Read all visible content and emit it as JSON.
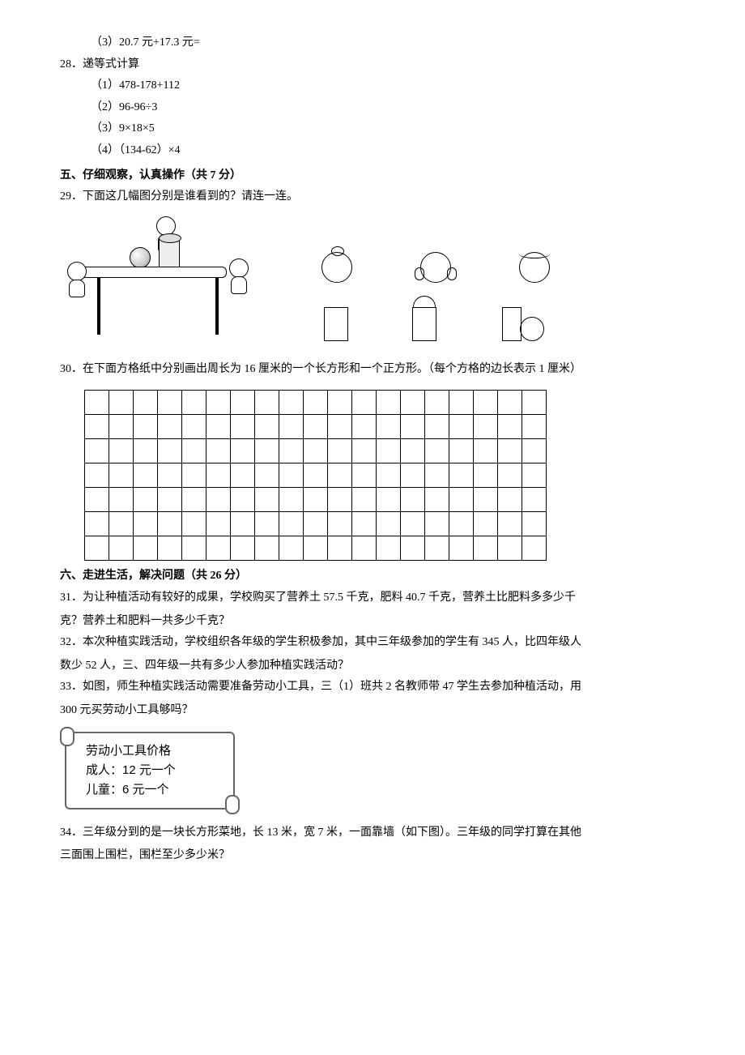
{
  "q27_3": "（3）20.7 元+17.3 元=",
  "q28": {
    "num": "28．",
    "title": "递等式计算",
    "items": [
      "（1）478-178+112",
      "（2）96-96÷3",
      "（3）9×18×5",
      "（4）（134-62）×4"
    ]
  },
  "section5": "五、仔细观察，认真操作（共 7 分）",
  "q29": {
    "num": "29．",
    "text": "下面这几幅图分别是谁看到的？请连一连。"
  },
  "q30": {
    "num": "30．",
    "text": "在下面方格纸中分别画出周长为 16 厘米的一个长方形和一个正方形。（每个方格的边长表示 1 厘米）"
  },
  "grid": {
    "rows": 7,
    "cols": 19
  },
  "section6": "六、走进生活，解决问题（共 26 分）",
  "q31": {
    "num": "31．",
    "line1": "为让种植活动有较好的成果，学校购买了营养土 57.5 千克，肥料 40.7 千克，营养土比肥料多多少千",
    "line2": "克？营养土和肥料一共多少千克？"
  },
  "q32": {
    "num": "32．",
    "line1": "本次种植实践活动，学校组织各年级的学生积极参加，其中三年级参加的学生有 345 人，比四年级人",
    "line2": "数少 52 人，三、四年级一共有多少人参加种植实践活动？"
  },
  "q33": {
    "num": "33．",
    "line1": "如图，师生种植实践活动需要准备劳动小工具，三（1）班共 2 名教师带 47 学生去参加种植活动，用",
    "line2": "300 元买劳动小工具够吗？"
  },
  "scroll": {
    "title": "劳动小工具价格",
    "adult": "成人：12 元一个",
    "child": "儿童：6 元一个"
  },
  "q34": {
    "num": "34．",
    "line1": "三年级分到的是一块长方形菜地，长 13 米，宽 7 米，一面靠墙（如下图）。三年级的同学打算在其他",
    "line2": "三面围上围栏，围栏至少多少米？"
  },
  "figure": {
    "heads": [
      "view-front",
      "view-side-a",
      "view-side-b"
    ],
    "shapes": [
      "rect-only",
      "circle-behind-rect",
      "rect-and-circle"
    ]
  }
}
